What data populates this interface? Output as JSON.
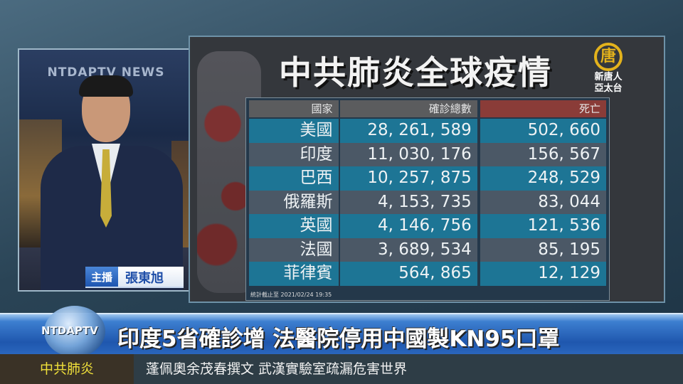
{
  "anchor": {
    "studio_sign": "NTDAPTV NEWS",
    "role": "主播",
    "name": "張東旭"
  },
  "panel": {
    "title": "中共肺炎全球疫情",
    "logo": {
      "line1": "新唐人",
      "line2": "亞太台",
      "glyph": "唐"
    },
    "table": {
      "headers": [
        "國家",
        "確診總數",
        "死亡"
      ],
      "rows": [
        [
          "美國",
          "28, 261, 589",
          "502, 660"
        ],
        [
          "印度",
          "11, 030, 176",
          "156, 567"
        ],
        [
          "巴西",
          "10, 257, 875",
          "248, 529"
        ],
        [
          "俄羅斯",
          "4, 153, 735",
          "83, 044"
        ],
        [
          "英國",
          "4, 146, 756",
          "121, 536"
        ],
        [
          "法國",
          "3, 689, 534",
          "85, 195"
        ],
        [
          "菲律賓",
          "564, 865",
          "12, 129"
        ]
      ]
    },
    "footnote": "統計截止至 2021/02/24 19:35"
  },
  "headline": {
    "logo": "NTDAPTV",
    "text": "印度5省確診增  法醫院停用中國製KN95口罩"
  },
  "ticker": {
    "label": "中共肺炎",
    "text": "蓬佩奧余茂春撰文 武漢實驗室疏漏危害世界"
  },
  "colors": {
    "header_death": "#8a3c38",
    "row_blue": "#1d7595",
    "row_gray": "#4b5866",
    "ticker_label": "#f0e03a"
  }
}
